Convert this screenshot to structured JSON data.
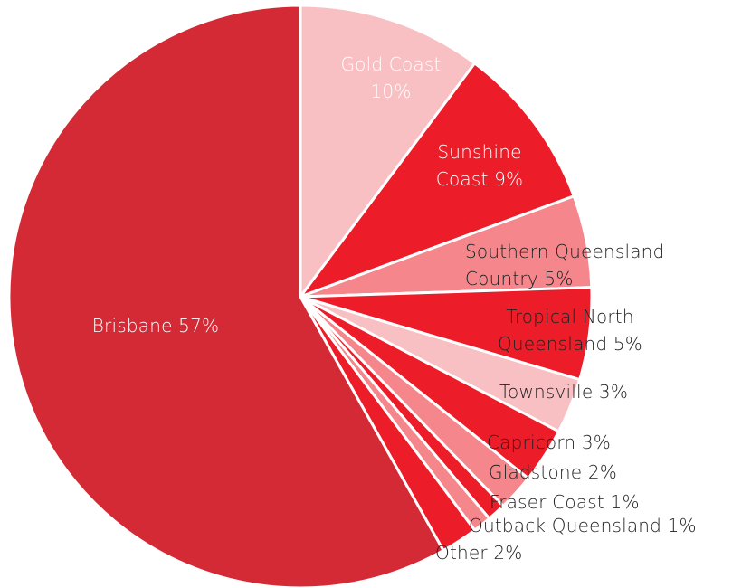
{
  "chart_data": {
    "type": "pie",
    "categories": [
      "Gold Coast",
      "Sunshine Coast",
      "Southern Queensland Country",
      "Tropical North Queensland",
      "Townsville",
      "Capricorn",
      "Gladstone",
      "Fraser Coast",
      "Outback Queensland",
      "Other",
      "Brisbane"
    ],
    "values": [
      10,
      9,
      5,
      5,
      3,
      3,
      2,
      1,
      1,
      2,
      57
    ],
    "value_labels": [
      "10%",
      "9%",
      "5%",
      "5%",
      "3%",
      "3%",
      "2%",
      "1%",
      "1%",
      "2%",
      "57%"
    ],
    "colors": [
      "#f9c0c4",
      "#ec1c28",
      "#f4868c",
      "#ec1c28",
      "#f9c0c4",
      "#ec1c28",
      "#f4868c",
      "#ec1c28",
      "#f4868c",
      "#ec1c28",
      "#d42a35"
    ]
  }
}
